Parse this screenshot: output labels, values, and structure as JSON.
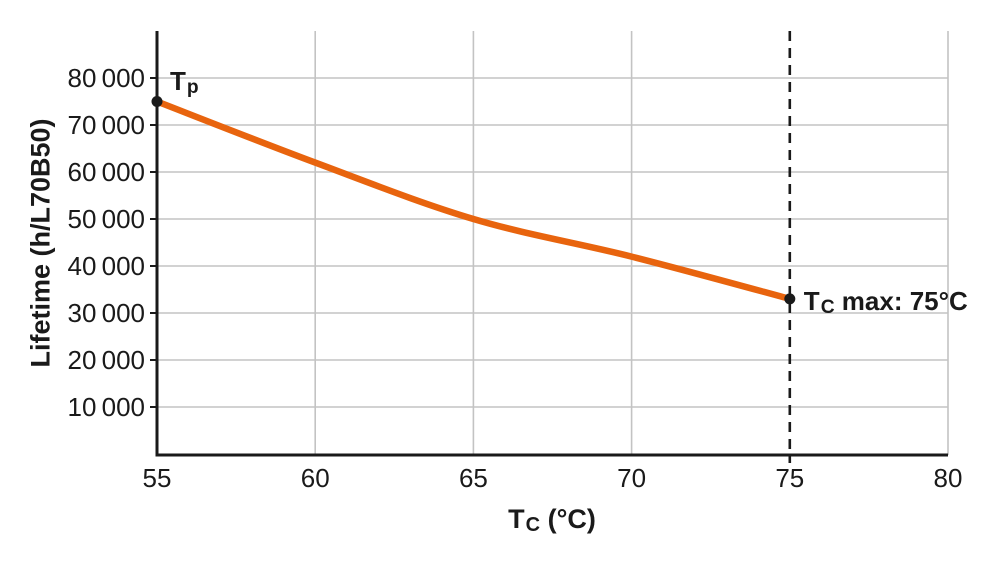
{
  "chart_data": {
    "type": "line",
    "title": "",
    "ylabel": "Lifetime (h/L70B50)",
    "xlabel_parts": {
      "main": "T",
      "sub": "C",
      "rest": " (°C)"
    },
    "x_axis": {
      "min": 55,
      "max": 80,
      "ticks": [
        {
          "v": 55,
          "label": "55"
        },
        {
          "v": 60,
          "label": "60"
        },
        {
          "v": 65,
          "label": "65"
        },
        {
          "v": 70,
          "label": "70"
        },
        {
          "v": 75,
          "label": "75"
        },
        {
          "v": 80,
          "label": "80"
        }
      ]
    },
    "y_axis": {
      "min": 0,
      "max": 90000,
      "ticks": [
        {
          "v": 10000,
          "label": "10 000"
        },
        {
          "v": 20000,
          "label": "20 000"
        },
        {
          "v": 30000,
          "label": "30 000"
        },
        {
          "v": 40000,
          "label": "40 000"
        },
        {
          "v": 50000,
          "label": "50 000"
        },
        {
          "v": 60000,
          "label": "60 000"
        },
        {
          "v": 70000,
          "label": "70 000"
        },
        {
          "v": 80000,
          "label": "80 000"
        }
      ]
    },
    "grid": {
      "show": true,
      "vertical_at": [
        60,
        65,
        70,
        80
      ],
      "horizontal_at": [
        10000,
        20000,
        30000,
        40000,
        50000,
        60000,
        70000,
        80000
      ]
    },
    "series": [
      {
        "name": "lifetime-vs-tc",
        "color": "#E8640E",
        "points": [
          [
            55,
            75000
          ],
          [
            60,
            62000
          ],
          [
            65,
            50000
          ],
          [
            70,
            42000
          ],
          [
            75,
            33000
          ]
        ]
      }
    ],
    "markers": [
      {
        "x": 55,
        "y": 75000,
        "label_main": "T",
        "label_sub": "p",
        "label_rest": ""
      },
      {
        "x": 75,
        "y": 33000,
        "label_main": "T",
        "label_sub": "C",
        "label_rest": " max: 75°C"
      }
    ],
    "reference_line": {
      "x": 75,
      "style": "dashed"
    },
    "colors": {
      "curve": "#E8640E",
      "grid": "#C3C3C3",
      "axis": "#1A1A1A",
      "text": "#1A1A1A",
      "marker": "#1A1A1A",
      "background": "#FFFFFF"
    }
  }
}
